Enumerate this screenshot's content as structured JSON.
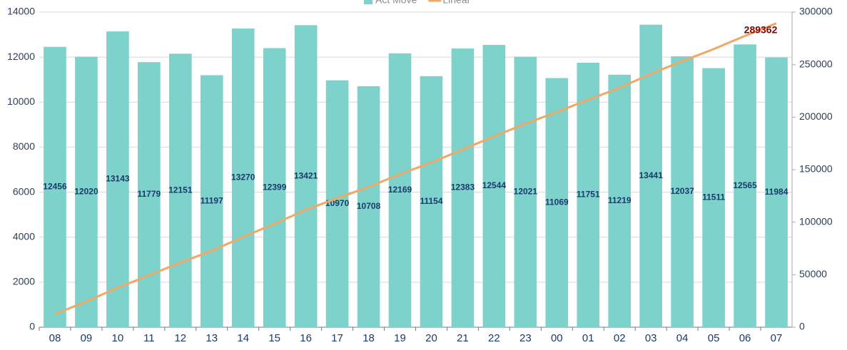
{
  "chart_data": {
    "type": "bar_line",
    "categories": [
      "08",
      "09",
      "10",
      "11",
      "12",
      "13",
      "14",
      "15",
      "16",
      "17",
      "18",
      "19",
      "20",
      "21",
      "22",
      "23",
      "00",
      "01",
      "02",
      "03",
      "04",
      "05",
      "06",
      "07"
    ],
    "series": [
      {
        "name": "Act Move",
        "type": "bar",
        "color": "#7dd3cc",
        "values": [
          12456,
          12020,
          13143,
          11779,
          12151,
          11197,
          13270,
          12399,
          13421,
          10970,
          10708,
          12169,
          11154,
          12383,
          12544,
          12021,
          11069,
          11751,
          11219,
          13441,
          12037,
          11511,
          12565,
          11984
        ]
      },
      {
        "name": "Linear",
        "type": "line",
        "axis": "y2",
        "color": "#f0a868",
        "values": [
          12456,
          24476,
          37619,
          49398,
          61549,
          72746,
          86016,
          98415,
          111836,
          122806,
          133514,
          145683,
          156837,
          169220,
          181764,
          193785,
          204854,
          216605,
          227824,
          241265,
          253302,
          264813,
          277378,
          289362
        ],
        "value_labels": [
          null,
          null,
          null,
          null,
          null,
          null,
          null,
          null,
          null,
          null,
          null,
          null,
          null,
          null,
          null,
          null,
          null,
          null,
          null,
          null,
          null,
          null,
          null,
          "289362"
        ]
      }
    ],
    "ylim": [
      0,
      14000
    ],
    "yticks": [
      0,
      2000,
      4000,
      6000,
      8000,
      10000,
      12000,
      14000
    ],
    "y2lim": [
      0,
      300000
    ],
    "y2ticks": [
      0,
      50000,
      100000,
      150000,
      200000,
      250000,
      300000
    ],
    "grid": true
  }
}
